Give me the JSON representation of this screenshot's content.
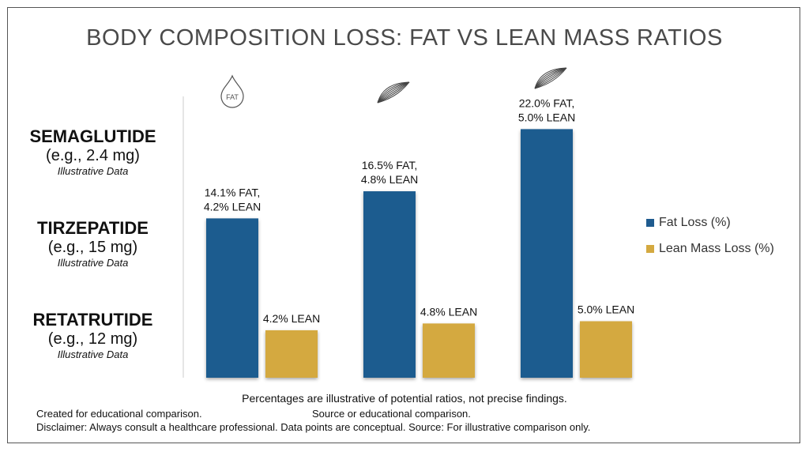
{
  "chart_data": {
    "type": "bar",
    "title": "BODY COMPOSITION LOSS: FAT VS LEAN MASS RATIOS",
    "categories": [
      "Semaglutide (e.g., 2.4 mg)",
      "Tirzepatide (e.g., 15 mg)",
      "Retatrutide (e.g., 12 mg)"
    ],
    "series": [
      {
        "name": "Fat Loss (%)",
        "color": "#1f5b8f",
        "values": [
          14.1,
          16.5,
          22.0
        ],
        "labels": [
          [
            "14.1% FAT,",
            "4.2% LEAN"
          ],
          [
            "16.5% FAT,",
            "4.8% LEAN"
          ],
          [
            "22.0% FAT,",
            "5.0% LEAN"
          ]
        ]
      },
      {
        "name": "Lean Mass Loss (%)",
        "color": "#d4a940",
        "values": [
          4.2,
          4.8,
          5.0
        ],
        "labels": [
          "4.2% LEAN",
          "4.8% LEAN",
          "5.0% LEAN"
        ]
      }
    ],
    "icons": [
      "fat-drop-icon",
      "muscle-icon",
      "muscle-icon"
    ],
    "fat_icon_text": "FAT",
    "legend_position": "right",
    "grid": false
  },
  "drugs": [
    {
      "name": "SEMAGLUTIDE",
      "dose": "(e.g., 2.4 mg)",
      "note": "Illustrative Data"
    },
    {
      "name": "TIRZEPATIDE",
      "dose": "(e.g., 15 mg)",
      "note": "Illustrative Data"
    },
    {
      "name": "RETATRUTIDE",
      "dose": "(e.g., 12 mg)",
      "note": "Illustrative Data"
    }
  ],
  "footer": {
    "caption": "Percentages are illustrative of potential ratios, not precise findings.",
    "left": "Created for educational comparison.",
    "middle": "Source or educational comparison.",
    "disclaimer": "Disclaimer: Always consult a healthcare professional. Data points are conceptual. Source: For illustrative comparison only."
  }
}
